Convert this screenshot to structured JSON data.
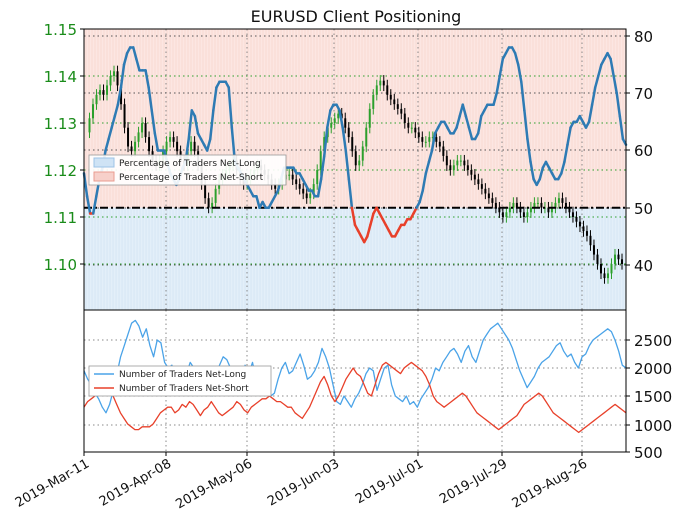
{
  "chart_data": [
    {
      "type": "line",
      "title": "EURUSD Client Positioning",
      "left_axis": {
        "ticks": [
          "1.10",
          "1.11",
          "1.12",
          "1.13",
          "1.14",
          "1.15"
        ],
        "ylim": [
          1.0885,
          1.1505
        ],
        "color": "#1a8c1a"
      },
      "right_axis": {
        "ticks": [
          "40",
          "50",
          "60",
          "70",
          "80"
        ],
        "ylim": [
          31.5,
          80.5
        ]
      },
      "reference_line": 50,
      "grid": true,
      "legend": {
        "position": "upper-left",
        "entries": [
          "Percentage of Traders Net-Long",
          "Percentage of Traders Net-Short"
        ]
      },
      "series": [
        {
          "name": "Percentage of Traders Net-Long",
          "color": "#2e7bb4",
          "fill": "#cfe3f5",
          "values": [
            56,
            52,
            49,
            49,
            52,
            55,
            57,
            60,
            62,
            64,
            66,
            68,
            71,
            75,
            77,
            78,
            78,
            76,
            74,
            74,
            74,
            71,
            67,
            63,
            60,
            60,
            60,
            58,
            56,
            55,
            54,
            55,
            57,
            58,
            62,
            67,
            66,
            63,
            62,
            61,
            60,
            62,
            67,
            71,
            72,
            72,
            72,
            71,
            64,
            58,
            57,
            56,
            55,
            54,
            53,
            52,
            52,
            50,
            51,
            50,
            50,
            51,
            52,
            53,
            55,
            57,
            57,
            57,
            57,
            56,
            56,
            55,
            54,
            53,
            53,
            52,
            52,
            55,
            59,
            64,
            67,
            68,
            68,
            67,
            64,
            60,
            55,
            50,
            47,
            46,
            45,
            44,
            45,
            47,
            49,
            50,
            49,
            48,
            47,
            46,
            45,
            45,
            46,
            47,
            47,
            48,
            48,
            49,
            50,
            51,
            53,
            56,
            58,
            60,
            63,
            64,
            65,
            65,
            64,
            63,
            63,
            64,
            66,
            68,
            66,
            64,
            62,
            62,
            63,
            66,
            67,
            68,
            68,
            68,
            70,
            73,
            76,
            77,
            78,
            78,
            77,
            75,
            72,
            67,
            62,
            58,
            55,
            54,
            55,
            57,
            58,
            57,
            56,
            55,
            55,
            56,
            58,
            61,
            64,
            65,
            65,
            66,
            65,
            64,
            65,
            68,
            71,
            73,
            75,
            76,
            77,
            76,
            73,
            70,
            66,
            62,
            61
          ]
        },
        {
          "name": "Percentage of Traders Net-Short",
          "color": "#e8402a",
          "fill": "#f7d0ca"
        }
      ],
      "price_series": {
        "name": "EURUSD",
        "candle_up_color": "#2ca02c",
        "candle_down_color": "#000000",
        "values": [
          1.128,
          1.131,
          1.134,
          1.136,
          1.137,
          1.136,
          1.138,
          1.14,
          1.141,
          1.138,
          1.134,
          1.129,
          1.125,
          1.124,
          1.126,
          1.128,
          1.13,
          1.127,
          1.124,
          1.122,
          1.121,
          1.122,
          1.124,
          1.126,
          1.127,
          1.126,
          1.124,
          1.122,
          1.121,
          1.124,
          1.126,
          1.124,
          1.121,
          1.117,
          1.114,
          1.112,
          1.113,
          1.116,
          1.118,
          1.119,
          1.12,
          1.121,
          1.122,
          1.12,
          1.118,
          1.117,
          1.118,
          1.119,
          1.12,
          1.121,
          1.12,
          1.119,
          1.118,
          1.117,
          1.116,
          1.117,
          1.118,
          1.119,
          1.119,
          1.118,
          1.117,
          1.116,
          1.115,
          1.114,
          1.115,
          1.117,
          1.12,
          1.124,
          1.127,
          1.129,
          1.13,
          1.131,
          1.132,
          1.131,
          1.129,
          1.127,
          1.124,
          1.121,
          1.122,
          1.125,
          1.129,
          1.133,
          1.136,
          1.138,
          1.139,
          1.138,
          1.136,
          1.135,
          1.134,
          1.133,
          1.132,
          1.13,
          1.129,
          1.129,
          1.128,
          1.127,
          1.126,
          1.126,
          1.127,
          1.127,
          1.126,
          1.125,
          1.123,
          1.121,
          1.12,
          1.121,
          1.122,
          1.122,
          1.121,
          1.12,
          1.119,
          1.118,
          1.117,
          1.116,
          1.115,
          1.114,
          1.113,
          1.112,
          1.111,
          1.11,
          1.111,
          1.112,
          1.113,
          1.112,
          1.111,
          1.11,
          1.111,
          1.112,
          1.113,
          1.113,
          1.112,
          1.112,
          1.111,
          1.112,
          1.113,
          1.114,
          1.113,
          1.112,
          1.111,
          1.11,
          1.109,
          1.108,
          1.107,
          1.106,
          1.104,
          1.102,
          1.1,
          1.098,
          1.097,
          1.098,
          1.1,
          1.102,
          1.101,
          1.1
        ]
      }
    },
    {
      "type": "line",
      "x_ticks": [
        "2019-Mar-11",
        "2019-Apr-08",
        "2019-May-06",
        "2019-Jun-03",
        "2019-Jul-01",
        "2019-Jul-29",
        "2019-Aug-26"
      ],
      "right_axis": {
        "ticks": [
          "500",
          "1000",
          "1500",
          "2000",
          "2500"
        ],
        "ylim": [
          500,
          2900
        ]
      },
      "grid": true,
      "legend": {
        "position": "center-left",
        "entries": [
          "Number of Traders Net-Long",
          "Number of Traders Net-Short"
        ]
      },
      "series": [
        {
          "name": "Number of Traders Net-Long",
          "color": "#4aa3e8",
          "values": [
            1950,
            1800,
            1700,
            1550,
            1450,
            1300,
            1200,
            1350,
            1600,
            1900,
            2200,
            2400,
            2600,
            2800,
            2850,
            2750,
            2550,
            2700,
            2400,
            2200,
            2500,
            2450,
            2100,
            2000,
            2050,
            1850,
            1700,
            1850,
            1900,
            2100,
            2000,
            1800,
            1650,
            1850,
            1650,
            1500,
            1750,
            2050,
            2200,
            2150,
            2000,
            1750,
            1600,
            1800,
            2050,
            1900,
            2100,
            1800,
            1700,
            1600,
            1650,
            1500,
            1550,
            1800,
            2000,
            2100,
            1900,
            1950,
            2100,
            2250,
            2050,
            1800,
            1850,
            1950,
            2100,
            2350,
            2200,
            2000,
            1700,
            1400,
            1350,
            1500,
            1400,
            1300,
            1450,
            1550,
            1700,
            1900,
            2000,
            1950,
            1600,
            1800,
            2000,
            2050,
            1700,
            1500,
            1450,
            1400,
            1500,
            1350,
            1400,
            1300,
            1450,
            1550,
            1650,
            1800,
            2000,
            1950,
            2100,
            2200,
            2300,
            2350,
            2250,
            2100,
            2300,
            2400,
            2200,
            2100,
            2300,
            2500,
            2600,
            2700,
            2750,
            2800,
            2700,
            2600,
            2500,
            2350,
            2150,
            1950,
            1800,
            1650,
            1750,
            1850,
            2000,
            2100,
            2150,
            2200,
            2300,
            2400,
            2450,
            2300,
            2200,
            2250,
            2100,
            2000,
            2200,
            2250,
            2400,
            2500,
            2550,
            2600,
            2650,
            2700,
            2650,
            2500,
            2300,
            2050,
            2000
          ]
        },
        {
          "name": "Number of Traders Net-Short",
          "color": "#e8402a",
          "values": [
            1300,
            1400,
            1450,
            1500,
            1550,
            1600,
            1650,
            1600,
            1500,
            1350,
            1200,
            1100,
            1000,
            950,
            900,
            900,
            950,
            950,
            950,
            1000,
            1100,
            1200,
            1250,
            1300,
            1300,
            1200,
            1250,
            1350,
            1300,
            1400,
            1350,
            1250,
            1150,
            1250,
            1300,
            1400,
            1300,
            1200,
            1150,
            1200,
            1250,
            1300,
            1400,
            1350,
            1250,
            1200,
            1300,
            1350,
            1400,
            1450,
            1450,
            1500,
            1450,
            1400,
            1400,
            1350,
            1300,
            1300,
            1200,
            1150,
            1100,
            1200,
            1300,
            1450,
            1600,
            1750,
            1850,
            1700,
            1500,
            1400,
            1500,
            1650,
            1800,
            1900,
            2000,
            1900,
            1850,
            1700,
            1550,
            1500,
            1700,
            1900,
            2050,
            2100,
            2050,
            2000,
            1950,
            1900,
            2000,
            2050,
            2100,
            2050,
            2000,
            1950,
            1850,
            1700,
            1500,
            1400,
            1350,
            1300,
            1350,
            1400,
            1450,
            1500,
            1550,
            1500,
            1400,
            1300,
            1200,
            1150,
            1100,
            1050,
            1000,
            950,
            900,
            950,
            1000,
            1050,
            1100,
            1150,
            1250,
            1350,
            1400,
            1450,
            1500,
            1550,
            1500,
            1400,
            1300,
            1200,
            1150,
            1100,
            1050,
            1000,
            950,
            900,
            850,
            900,
            950,
            1000,
            1050,
            1100,
            1150,
            1200,
            1250,
            1300,
            1350,
            1300,
            1250,
            1200
          ]
        }
      ]
    }
  ]
}
